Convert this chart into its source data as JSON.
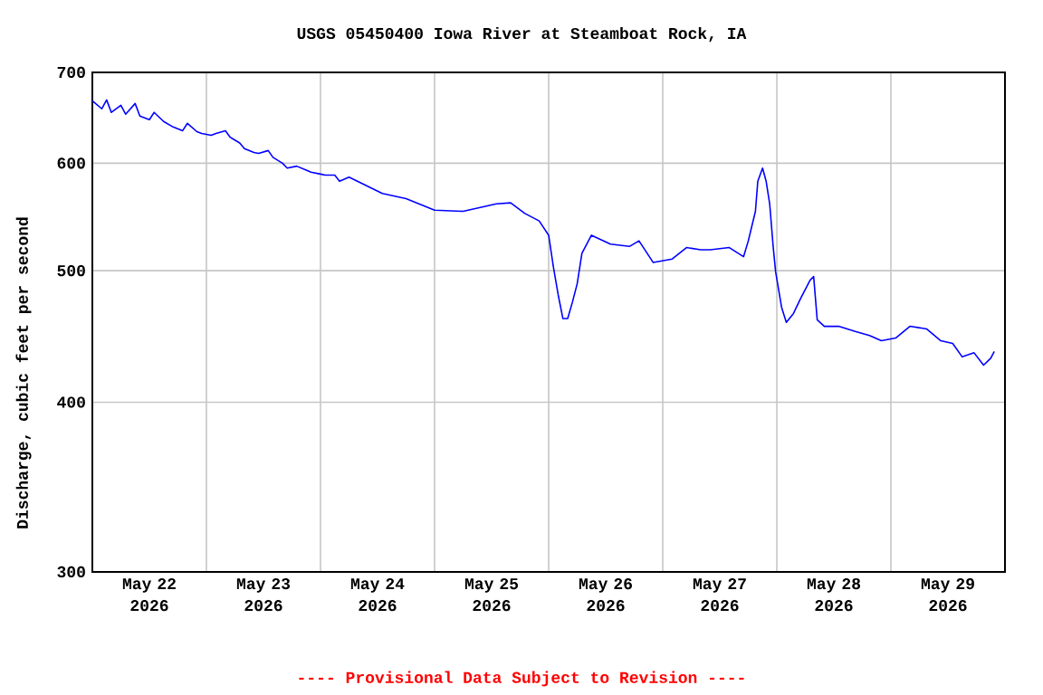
{
  "chart_data": {
    "type": "line",
    "title": "USGS 05450400 Iowa River at Steamboat Rock, IA",
    "ylabel": "Discharge, cubic feet per second",
    "annotations": [
      "---- Provisional Data Subject to Revision ----"
    ],
    "color": "#0000ff",
    "log": "y",
    "grid": true,
    "marker": "none",
    "xlim": [
      "2026-05-22T00:00",
      "2026-05-30T00:00"
    ],
    "xticks": [
      {
        "value": "2026-05-22T12:00",
        "label": "May 22 2026"
      },
      {
        "value": "2026-05-23T12:00",
        "label": "May 23 2026"
      },
      {
        "value": "2026-05-24T12:00",
        "label": "May 24 2026"
      },
      {
        "value": "2026-05-25T12:00",
        "label": "May 25 2026"
      },
      {
        "value": "2026-05-26T12:00",
        "label": "May 26 2026"
      },
      {
        "value": "2026-05-27T12:00",
        "label": "May 27 2026"
      },
      {
        "value": "2026-05-28T12:00",
        "label": "May 28 2026"
      },
      {
        "value": "2026-05-29T12:00",
        "label": "May 29 2026"
      },
      {
        "value": "2026-05-23T00:00",
        "label": null
      },
      {
        "value": "2026-05-24T00:00",
        "label": null
      },
      {
        "value": "2026-05-25T00:00",
        "label": null
      },
      {
        "value": "2026-05-26T00:00",
        "label": null
      },
      {
        "value": "2026-05-27T00:00",
        "label": null
      },
      {
        "value": "2026-05-28T00:00",
        "label": null
      },
      {
        "value": "2026-05-29T00:00",
        "label": null
      }
    ],
    "ylim": [
      300,
      700
    ],
    "yticks": [
      300,
      400,
      500,
      600,
      700
    ],
    "x": [
      "2026-05-22T00:00",
      "2026-05-22T02:00",
      "2026-05-22T03:00",
      "2026-05-22T04:00",
      "2026-05-22T06:00",
      "2026-05-22T07:00",
      "2026-05-22T09:00",
      "2026-05-22T10:00",
      "2026-05-22T12:00",
      "2026-05-22T13:00",
      "2026-05-22T15:00",
      "2026-05-22T17:00",
      "2026-05-22T19:00",
      "2026-05-22T20:00",
      "2026-05-22T22:00",
      "2026-05-22T23:00",
      "2026-05-23T01:00",
      "2026-05-23T02:00",
      "2026-05-23T04:00",
      "2026-05-23T05:00",
      "2026-05-23T07:00",
      "2026-05-23T08:00",
      "2026-05-23T10:00",
      "2026-05-23T11:00",
      "2026-05-23T13:00",
      "2026-05-23T14:00",
      "2026-05-23T16:00",
      "2026-05-23T17:00",
      "2026-05-23T19:00",
      "2026-05-23T21:00",
      "2026-05-23T22:00",
      "2026-05-24T00:00",
      "2026-05-24T01:00",
      "2026-05-24T03:00",
      "2026-05-24T04:00",
      "2026-05-24T06:00",
      "2026-05-24T13:00",
      "2026-05-24T18:00",
      "2026-05-25T00:00",
      "2026-05-25T06:00",
      "2026-05-25T13:00",
      "2026-05-25T16:00",
      "2026-05-25T19:00",
      "2026-05-25T22:00",
      "2026-05-26T00:00",
      "2026-05-26T01:00",
      "2026-05-26T02:00",
      "2026-05-26T03:00",
      "2026-05-26T04:00",
      "2026-05-26T05:00",
      "2026-05-26T06:00",
      "2026-05-26T07:00",
      "2026-05-26T09:00",
      "2026-05-26T13:00",
      "2026-05-26T17:00",
      "2026-05-26T19:00",
      "2026-05-26T22:00",
      "2026-05-27T02:00",
      "2026-05-27T05:00",
      "2026-05-27T08:00",
      "2026-05-27T10:00",
      "2026-05-27T14:00",
      "2026-05-27T17:00",
      "2026-05-27T18:00",
      "2026-05-27T19:30",
      "2026-05-27T20:00",
      "2026-05-27T21:00",
      "2026-05-27T21:45",
      "2026-05-27T22:30",
      "2026-05-27T23:15",
      "2026-05-27T23:45",
      "2026-05-28T01:00",
      "2026-05-28T02:00",
      "2026-05-28T03:30",
      "2026-05-28T05:00",
      "2026-05-28T07:00",
      "2026-05-28T07:45",
      "2026-05-28T08:30",
      "2026-05-28T10:00",
      "2026-05-28T13:00",
      "2026-05-28T16:30",
      "2026-05-28T19:30",
      "2026-05-28T22:00",
      "2026-05-29T01:00",
      "2026-05-29T04:00",
      "2026-05-29T07:30",
      "2026-05-29T10:30",
      "2026-05-29T13:00",
      "2026-05-29T15:00",
      "2026-05-29T17:30",
      "2026-05-29T19:30",
      "2026-05-29T21:00",
      "2026-05-29T21:45"
    ],
    "values": [
      667,
      658,
      668,
      654,
      662,
      652,
      664,
      650,
      646,
      654,
      644,
      638,
      634,
      642,
      633,
      631,
      629,
      631,
      634,
      627,
      621,
      615,
      611,
      610,
      613,
      606,
      600,
      595,
      597,
      593,
      591,
      589,
      588,
      588,
      582,
      586,
      570,
      565,
      554,
      553,
      560,
      561,
      551,
      544,
      531,
      503,
      480,
      461,
      461,
      474,
      489,
      515,
      531,
      523,
      521,
      526,
      507,
      510,
      520,
      518,
      518,
      520,
      512,
      526,
      553,
      582,
      595,
      582,
      560,
      520,
      499,
      470,
      458,
      465,
      477,
      492,
      495,
      460,
      455,
      455,
      451,
      448,
      444,
      446,
      455,
      453,
      444,
      442,
      432,
      435,
      426,
      431,
      436
    ]
  }
}
